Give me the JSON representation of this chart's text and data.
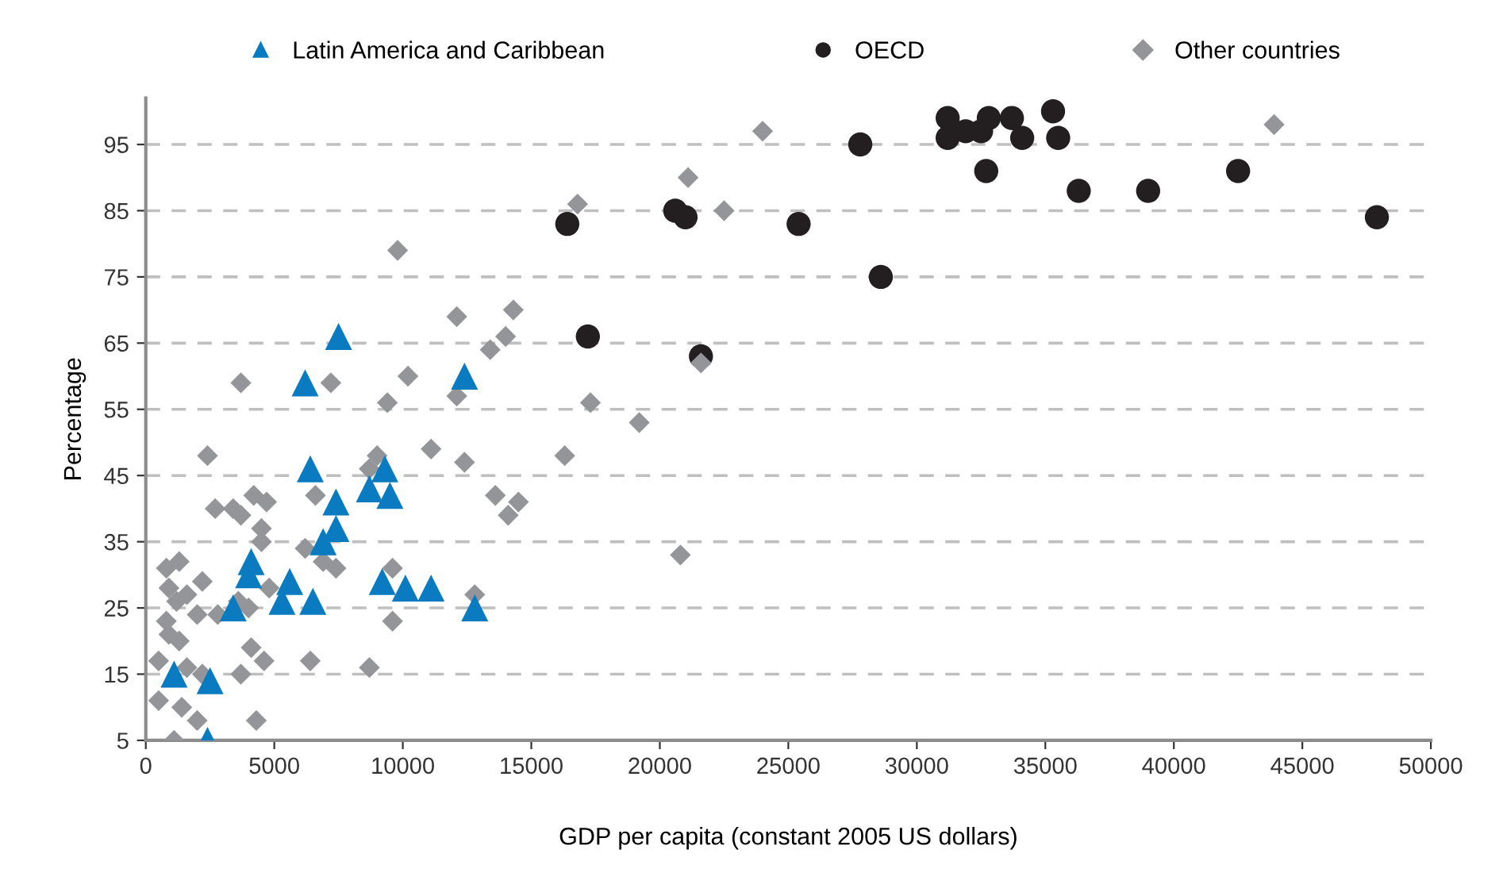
{
  "chart_data": {
    "type": "scatter",
    "xlabel": "GDP per capita (constant 2005 US dollars)",
    "ylabel": "Percentage",
    "xlim": [
      0,
      50000
    ],
    "ylim": [
      5,
      102
    ],
    "xticks": [
      0,
      5000,
      10000,
      15000,
      20000,
      25000,
      30000,
      35000,
      40000,
      45000,
      50000
    ],
    "yticks": [
      5,
      15,
      25,
      35,
      45,
      55,
      65,
      75,
      85,
      95
    ],
    "grid": "y",
    "legend": "top",
    "series": [
      {
        "name": "Latin America and Caribbean",
        "color": "#0a7bc1",
        "marker": "triangle",
        "x": [
          2400,
          1100,
          2500,
          3400,
          4100,
          4000,
          5600,
          5300,
          6500,
          6200,
          7500,
          6400,
          6900,
          7400,
          7400,
          8700,
          9300,
          9500,
          9200,
          10100,
          11100,
          12800,
          12400
        ],
        "values": [
          5,
          15,
          14,
          25,
          32,
          30,
          29,
          26,
          26,
          59,
          66,
          46,
          35,
          37,
          41,
          43,
          46,
          42,
          29,
          28,
          28,
          25,
          60
        ]
      },
      {
        "name": "OECD",
        "color": "#231f20",
        "marker": "circle",
        "x": [
          16400,
          17200,
          21600,
          20600,
          21000,
          25400,
          27800,
          28600,
          31200,
          31200,
          31900,
          32500,
          32800,
          32700,
          33700,
          34100,
          35300,
          35500,
          36300,
          39000,
          42500,
          47900
        ],
        "values": [
          83,
          66,
          63,
          85,
          84,
          83,
          95,
          75,
          99,
          96,
          97,
          97,
          99,
          91,
          99,
          96,
          100,
          96,
          88,
          88,
          91,
          84
        ]
      },
      {
        "name": "Other countries",
        "color": "#939598",
        "marker": "diamond",
        "x": [
          2400,
          2700,
          3400,
          3700,
          4200,
          4700,
          4500,
          4500,
          2200,
          800,
          1300,
          900,
          1600,
          1200,
          2000,
          2800,
          800,
          900,
          1300,
          500,
          1600,
          2200,
          500,
          1400,
          2000,
          1100,
          4300,
          3700,
          4100,
          4600,
          6400,
          8700,
          9600,
          9600,
          6200,
          6600,
          6900,
          7400,
          4000,
          4800,
          3600,
          8700,
          9000,
          11100,
          12400,
          13600,
          14100,
          14500,
          12800,
          9800,
          12100,
          14300,
          14000,
          13400,
          10200,
          9400,
          12100,
          7200,
          3700,
          8700,
          17300,
          19200,
          16300,
          20800,
          21600,
          43900,
          24000,
          21100,
          22500,
          16800
        ],
        "values": [
          48,
          40,
          40,
          39,
          42,
          41,
          37,
          35,
          29,
          31,
          32,
          28,
          27,
          26,
          24,
          24,
          23,
          21,
          20,
          17,
          16,
          15,
          11,
          10,
          8,
          5,
          8,
          15,
          19,
          17,
          17,
          16,
          23,
          31,
          34,
          42,
          32,
          31,
          25,
          28,
          26,
          46,
          48,
          49,
          47,
          42,
          39,
          41,
          27,
          79,
          69,
          70,
          66,
          64,
          60,
          56,
          57,
          59,
          59,
          46,
          56,
          53,
          48,
          33,
          62,
          98,
          97,
          90,
          85,
          86
        ]
      }
    ]
  }
}
